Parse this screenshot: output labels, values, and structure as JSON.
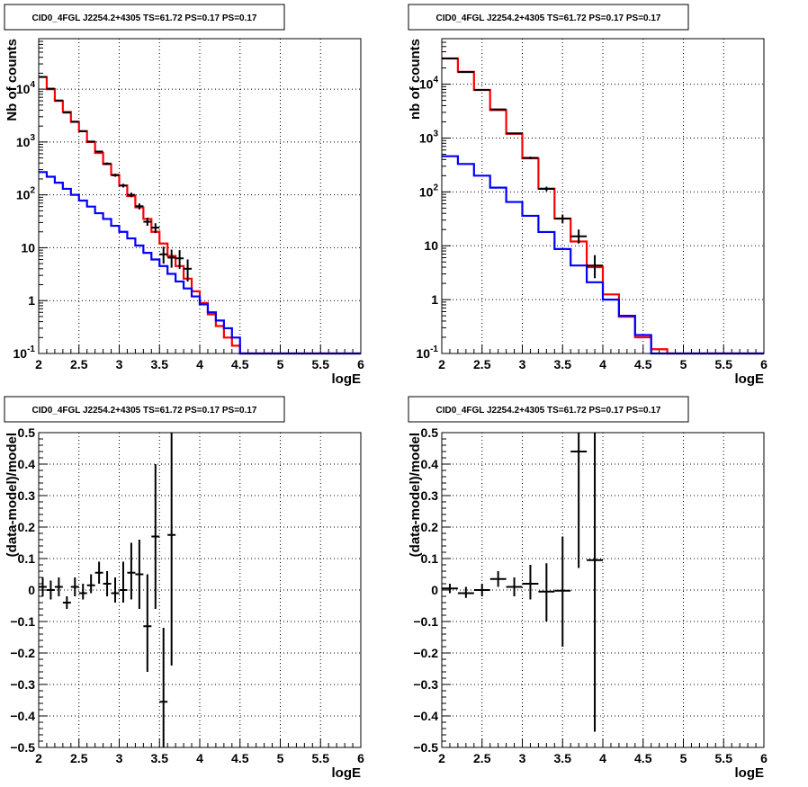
{
  "colors": {
    "model_total": "#ff0000",
    "model_source": "#0000ff",
    "data": "#000000",
    "grid": "#000000"
  },
  "chart_data": [
    {
      "id": "counts-left",
      "type": "line",
      "title": "CID0_4FGL J2254.2+4305 TS=61.72 PS=0.17 PS=0.17",
      "xlabel": "logE",
      "ylabel": "Nb of counts",
      "xlim": [
        2,
        6
      ],
      "ylim": [
        0.1,
        90000
      ],
      "log_y": true,
      "grid": true,
      "x_ticks": [
        "2",
        "2.5",
        "3",
        "3.5",
        "4",
        "4.5",
        "5",
        "5.5",
        "6"
      ],
      "y_ticks": [
        {
          "value": 0.1,
          "base": "10",
          "exp": "-1"
        },
        {
          "value": 1,
          "label": "1"
        },
        {
          "value": 10,
          "label": "10"
        },
        {
          "value": 100,
          "base": "10",
          "exp": "2"
        },
        {
          "value": 1000,
          "base": "10",
          "exp": "3"
        },
        {
          "value": 10000,
          "base": "10",
          "exp": "4"
        }
      ],
      "bin_edges": [
        2.0,
        2.1,
        2.2,
        2.3,
        2.4,
        2.5,
        2.6,
        2.7,
        2.8,
        2.9,
        3.0,
        3.1,
        3.2,
        3.3,
        3.4,
        3.5,
        3.6,
        3.7,
        3.8,
        3.9,
        4.0,
        4.1,
        4.2,
        4.3,
        4.4,
        4.5,
        4.6,
        4.7,
        4.8,
        4.9,
        5.0,
        5.1,
        5.2,
        5.3,
        5.4,
        5.5,
        5.6,
        5.7,
        5.8,
        5.9,
        6.0
      ],
      "series": [
        {
          "key": "model_total",
          "values": [
            17000,
            10000,
            6000,
            3700,
            2400,
            1600,
            1000,
            620,
            380,
            240,
            150,
            95,
            58,
            35,
            20,
            12,
            7,
            4.5,
            2.6,
            1.5,
            0.9,
            0.55,
            0.33,
            0.2,
            0.14,
            0.1,
            0.1,
            0.1,
            0.1,
            0.1,
            0.1,
            0.1,
            0.1,
            0.1,
            0.1,
            0.1,
            0.1,
            0.1,
            0.1,
            0.1
          ]
        },
        {
          "key": "model_source",
          "values": [
            270,
            220,
            170,
            130,
            100,
            78,
            60,
            45,
            35,
            26,
            20,
            15,
            11,
            8,
            6,
            4.5,
            3.2,
            2.3,
            1.7,
            1.2,
            0.85,
            0.6,
            0.42,
            0.3,
            0.2,
            0.1,
            0.1,
            0.1,
            0.1,
            0.1,
            0.1,
            0.1,
            0.1,
            0.1,
            0.1,
            0.1,
            0.1,
            0.1,
            0.1,
            0.1
          ]
        }
      ],
      "points": [
        {
          "x": 2.05,
          "y": 17000,
          "xerr": 0.05,
          "ylo": 16870,
          "yhi": 17130
        },
        {
          "x": 2.15,
          "y": 10200,
          "xerr": 0.05,
          "ylo": 10100,
          "yhi": 10300
        },
        {
          "x": 2.25,
          "y": 6100,
          "xerr": 0.05,
          "ylo": 6020,
          "yhi": 6180
        },
        {
          "x": 2.35,
          "y": 3600,
          "xerr": 0.05,
          "ylo": 3540,
          "yhi": 3660
        },
        {
          "x": 2.45,
          "y": 2420,
          "xerr": 0.05,
          "ylo": 2370,
          "yhi": 2470
        },
        {
          "x": 2.55,
          "y": 1600,
          "xerr": 0.05,
          "ylo": 1560,
          "yhi": 1640
        },
        {
          "x": 2.65,
          "y": 1020,
          "xerr": 0.05,
          "ylo": 990,
          "yhi": 1050
        },
        {
          "x": 2.75,
          "y": 660,
          "xerr": 0.05,
          "ylo": 635,
          "yhi": 685
        },
        {
          "x": 2.85,
          "y": 390,
          "xerr": 0.05,
          "ylo": 370,
          "yhi": 410
        },
        {
          "x": 2.95,
          "y": 235,
          "xerr": 0.05,
          "ylo": 220,
          "yhi": 250
        },
        {
          "x": 3.05,
          "y": 150,
          "xerr": 0.05,
          "ylo": 138,
          "yhi": 162
        },
        {
          "x": 3.15,
          "y": 100,
          "xerr": 0.05,
          "ylo": 90,
          "yhi": 110
        },
        {
          "x": 3.25,
          "y": 61,
          "xerr": 0.05,
          "ylo": 53,
          "yhi": 69
        },
        {
          "x": 3.35,
          "y": 31,
          "xerr": 0.05,
          "ylo": 26,
          "yhi": 37
        },
        {
          "x": 3.45,
          "y": 24,
          "xerr": 0.05,
          "ylo": 19,
          "yhi": 29
        },
        {
          "x": 3.55,
          "y": 7.5,
          "xerr": 0.05,
          "ylo": 5,
          "yhi": 10.5
        },
        {
          "x": 3.65,
          "y": 6.5,
          "xerr": 0.05,
          "ylo": 4.2,
          "yhi": 9.2
        },
        {
          "x": 3.75,
          "y": 6.3,
          "xerr": 0.05,
          "ylo": 4,
          "yhi": 9
        },
        {
          "x": 3.85,
          "y": 4,
          "xerr": 0.05,
          "ylo": 2.3,
          "yhi": 6
        }
      ]
    },
    {
      "id": "counts-right",
      "type": "line",
      "title": "CID0_4FGL J2254.2+4305 TS=61.72 PS=0.17 PS=0.17",
      "xlabel": "logE",
      "ylabel": "nb of counts",
      "xlim": [
        2,
        6
      ],
      "ylim": [
        0.1,
        70000
      ],
      "log_y": true,
      "grid": true,
      "x_ticks": [
        "2",
        "2.5",
        "3",
        "3.5",
        "4",
        "4.5",
        "5",
        "5.5",
        "6"
      ],
      "y_ticks": [
        {
          "value": 0.1,
          "base": "10",
          "exp": "-1"
        },
        {
          "value": 1,
          "label": "1"
        },
        {
          "value": 10,
          "label": "10"
        },
        {
          "value": 100,
          "base": "10",
          "exp": "2"
        },
        {
          "value": 1000,
          "base": "10",
          "exp": "3"
        },
        {
          "value": 10000,
          "base": "10",
          "exp": "4"
        }
      ],
      "bin_edges": [
        2.0,
        2.2,
        2.4,
        2.6,
        2.8,
        3.0,
        3.2,
        3.4,
        3.6,
        3.8,
        4.0,
        4.2,
        4.4,
        4.6,
        4.8,
        5.0,
        5.2,
        5.4,
        5.6,
        5.8,
        6.0
      ],
      "series": [
        {
          "key": "model_total",
          "values": [
            30000,
            17000,
            7800,
            3300,
            1200,
            420,
            115,
            32,
            12,
            4,
            1.25,
            0.48,
            0.2,
            0.12,
            0.1,
            0.1,
            0.1,
            0.1,
            0.1,
            0.1
          ]
        },
        {
          "key": "model_source",
          "values": [
            460,
            330,
            200,
            120,
            65,
            36,
            18,
            8.7,
            4.3,
            2.1,
            1.0,
            0.5,
            0.22,
            0.1,
            0.1,
            0.1,
            0.1,
            0.1,
            0.1,
            0.1
          ]
        }
      ],
      "points": [
        {
          "x": 2.1,
          "y": 30000,
          "xerr": 0.1,
          "ylo": 29800,
          "yhi": 30200
        },
        {
          "x": 2.3,
          "y": 16800,
          "xerr": 0.1,
          "ylo": 16650,
          "yhi": 16950
        },
        {
          "x": 2.5,
          "y": 7850,
          "xerr": 0.1,
          "ylo": 7750,
          "yhi": 7950
        },
        {
          "x": 2.7,
          "y": 3400,
          "xerr": 0.1,
          "ylo": 3340,
          "yhi": 3460
        },
        {
          "x": 2.9,
          "y": 1220,
          "xerr": 0.1,
          "ylo": 1180,
          "yhi": 1260
        },
        {
          "x": 3.1,
          "y": 428,
          "xerr": 0.1,
          "ylo": 405,
          "yhi": 451
        },
        {
          "x": 3.3,
          "y": 114,
          "xerr": 0.1,
          "ylo": 103,
          "yhi": 125
        },
        {
          "x": 3.5,
          "y": 32,
          "xerr": 0.1,
          "ylo": 26,
          "yhi": 38
        },
        {
          "x": 3.7,
          "y": 15,
          "xerr": 0.1,
          "ylo": 11,
          "yhi": 20
        },
        {
          "x": 3.9,
          "y": 4.3,
          "xerr": 0.1,
          "ylo": 2.5,
          "yhi": 6.7
        }
      ]
    },
    {
      "id": "resid-left",
      "type": "scatter",
      "title": "CID0_4FGL J2254.2+4305 TS=61.72 PS=0.17 PS=0.17",
      "xlabel": "logE",
      "ylabel": "(data-model)/model",
      "xlim": [
        2,
        6
      ],
      "ylim": [
        -0.5,
        0.5
      ],
      "log_y": false,
      "grid": true,
      "x_ticks": [
        "2",
        "2.5",
        "3",
        "3.5",
        "4",
        "4.5",
        "5",
        "5.5",
        "6"
      ],
      "y_ticks": [
        {
          "value": -0.5,
          "label": "−0.5"
        },
        {
          "value": -0.4,
          "label": "−0.4"
        },
        {
          "value": -0.3,
          "label": "−0.3"
        },
        {
          "value": -0.2,
          "label": "−0.2"
        },
        {
          "value": -0.1,
          "label": "−0.1"
        },
        {
          "value": 0,
          "label": "0"
        },
        {
          "value": 0.1,
          "label": "0.1"
        },
        {
          "value": 0.2,
          "label": "0.2"
        },
        {
          "value": 0.3,
          "label": "0.3"
        },
        {
          "value": 0.4,
          "label": "0.4"
        },
        {
          "value": 0.5,
          "label": "0.5"
        }
      ],
      "points": [
        {
          "x": 2.05,
          "y": 0.01,
          "xerr": 0.05,
          "ylo": -0.02,
          "yhi": 0.04
        },
        {
          "x": 2.15,
          "y": 0.0,
          "xerr": 0.05,
          "ylo": -0.03,
          "yhi": 0.03
        },
        {
          "x": 2.25,
          "y": 0.01,
          "xerr": 0.05,
          "ylo": -0.02,
          "yhi": 0.04
        },
        {
          "x": 2.35,
          "y": -0.04,
          "xerr": 0.05,
          "ylo": -0.06,
          "yhi": -0.02
        },
        {
          "x": 2.45,
          "y": 0.01,
          "xerr": 0.05,
          "ylo": -0.02,
          "yhi": 0.04
        },
        {
          "x": 2.55,
          "y": -0.01,
          "xerr": 0.05,
          "ylo": -0.03,
          "yhi": 0.02
        },
        {
          "x": 2.65,
          "y": 0.015,
          "xerr": 0.05,
          "ylo": -0.01,
          "yhi": 0.05
        },
        {
          "x": 2.75,
          "y": 0.055,
          "xerr": 0.05,
          "ylo": 0.02,
          "yhi": 0.09
        },
        {
          "x": 2.85,
          "y": 0.02,
          "xerr": 0.05,
          "ylo": -0.02,
          "yhi": 0.06
        },
        {
          "x": 2.95,
          "y": -0.01,
          "xerr": 0.05,
          "ylo": -0.04,
          "yhi": 0.04
        },
        {
          "x": 3.05,
          "y": 0.0,
          "xerr": 0.05,
          "ylo": -0.04,
          "yhi": 0.09
        },
        {
          "x": 3.15,
          "y": 0.055,
          "xerr": 0.05,
          "ylo": -0.03,
          "yhi": 0.15
        },
        {
          "x": 3.25,
          "y": 0.05,
          "xerr": 0.05,
          "ylo": -0.06,
          "yhi": 0.16
        },
        {
          "x": 3.35,
          "y": -0.115,
          "xerr": 0.05,
          "ylo": -0.26,
          "yhi": 0.05
        },
        {
          "x": 3.45,
          "y": 0.17,
          "xerr": 0.05,
          "ylo": -0.06,
          "yhi": 0.4
        },
        {
          "x": 3.55,
          "y": -0.355,
          "xerr": 0.05,
          "ylo": -0.55,
          "yhi": -0.12
        },
        {
          "x": 3.65,
          "y": 0.175,
          "xerr": 0.05,
          "ylo": -0.24,
          "yhi": 0.55
        }
      ]
    },
    {
      "id": "resid-right",
      "type": "scatter",
      "title": "CID0_4FGL J2254.2+4305 TS=61.72 PS=0.17 PS=0.17",
      "xlabel": "logE",
      "ylabel": "(data-model)/model",
      "xlim": [
        2,
        6
      ],
      "ylim": [
        -0.5,
        0.5
      ],
      "log_y": false,
      "grid": true,
      "x_ticks": [
        "2",
        "2.5",
        "3",
        "3.5",
        "4",
        "4.5",
        "5",
        "5.5",
        "6"
      ],
      "y_ticks": [
        {
          "value": -0.5,
          "label": "−0.5"
        },
        {
          "value": -0.4,
          "label": "−0.4"
        },
        {
          "value": -0.3,
          "label": "−0.3"
        },
        {
          "value": -0.2,
          "label": "−0.2"
        },
        {
          "value": -0.1,
          "label": "−0.1"
        },
        {
          "value": 0,
          "label": "0"
        },
        {
          "value": 0.1,
          "label": "0.1"
        },
        {
          "value": 0.2,
          "label": "0.2"
        },
        {
          "value": 0.3,
          "label": "0.3"
        },
        {
          "value": 0.4,
          "label": "0.4"
        },
        {
          "value": 0.5,
          "label": "0.5"
        }
      ],
      "points": [
        {
          "x": 2.1,
          "y": 0.005,
          "xerr": 0.1,
          "ylo": -0.01,
          "yhi": 0.02
        },
        {
          "x": 2.3,
          "y": -0.01,
          "xerr": 0.1,
          "ylo": -0.025,
          "yhi": 0.01
        },
        {
          "x": 2.5,
          "y": 0.0,
          "xerr": 0.1,
          "ylo": -0.02,
          "yhi": 0.02
        },
        {
          "x": 2.7,
          "y": 0.035,
          "xerr": 0.1,
          "ylo": 0.01,
          "yhi": 0.06
        },
        {
          "x": 2.9,
          "y": 0.01,
          "xerr": 0.1,
          "ylo": -0.02,
          "yhi": 0.04
        },
        {
          "x": 3.1,
          "y": 0.02,
          "xerr": 0.1,
          "ylo": -0.03,
          "yhi": 0.08
        },
        {
          "x": 3.3,
          "y": -0.005,
          "xerr": 0.1,
          "ylo": -0.1,
          "yhi": 0.085
        },
        {
          "x": 3.5,
          "y": -0.002,
          "xerr": 0.1,
          "ylo": -0.18,
          "yhi": 0.17
        },
        {
          "x": 3.7,
          "y": 0.44,
          "xerr": 0.1,
          "ylo": 0.07,
          "yhi": 0.55
        },
        {
          "x": 3.9,
          "y": 0.095,
          "xerr": 0.1,
          "ylo": -0.45,
          "yhi": 0.55
        }
      ]
    }
  ]
}
